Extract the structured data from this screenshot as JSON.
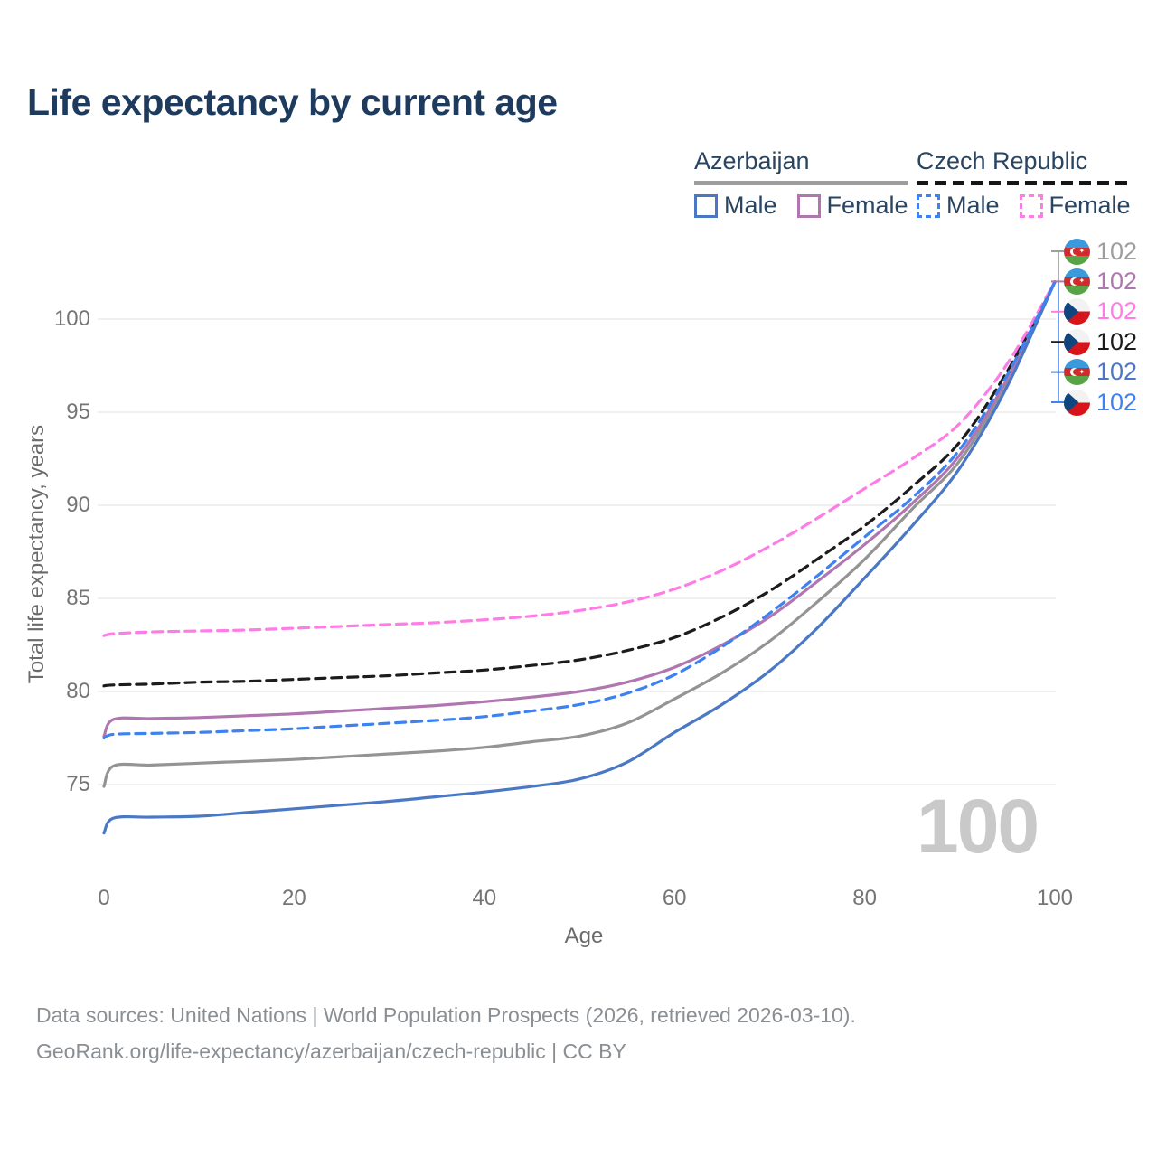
{
  "title": "Life expectancy by current age",
  "legend": {
    "groups": [
      {
        "label": "Azerbaijan",
        "underline": "solid",
        "items": [
          {
            "label": "Male"
          },
          {
            "label": "Female"
          }
        ]
      },
      {
        "label": "Czech Republic",
        "underline": "dashed",
        "items": [
          {
            "label": "Male"
          },
          {
            "label": "Female"
          }
        ]
      }
    ]
  },
  "watermark": "100",
  "end_labels": [
    {
      "flag": "az",
      "value": "102",
      "color": "#9e9e9e",
      "series": "Azerbaijan Both sexes"
    },
    {
      "flag": "az",
      "value": "102",
      "color": "#b076b0",
      "series": "Azerbaijan Female"
    },
    {
      "flag": "cz",
      "value": "102",
      "color": "#ff7ce6",
      "series": "Czech Republic Female"
    },
    {
      "flag": "cz",
      "value": "102",
      "color": "#1c1c1c",
      "series": "Czech Republic Both sexes"
    },
    {
      "flag": "az",
      "value": "102",
      "color": "#4a78c4",
      "series": "Azerbaijan Male"
    },
    {
      "flag": "cz",
      "value": "102",
      "color": "#3e82f1",
      "series": "Czech Republic Male"
    }
  ],
  "footer": {
    "line1": "Data sources: United Nations | World Population Prospects (2026, retrieved 2026-03-10).",
    "line2": "GeoRank.org/life-expectancy/azerbaijan/czech-republic | CC BY"
  },
  "chart_data": {
    "type": "line",
    "title": "Life expectancy by current age",
    "xlabel": "Age",
    "ylabel": "Total life expectancy, years",
    "x_ticks": [
      0,
      20,
      40,
      60,
      80,
      100
    ],
    "y_ticks": [
      75,
      80,
      85,
      90,
      95,
      100
    ],
    "xlim": [
      0,
      100
    ],
    "ylim": [
      71.5,
      103
    ],
    "grid": "horizontal-only",
    "legend_position": "top-right",
    "x": [
      0,
      1,
      5,
      10,
      15,
      20,
      25,
      30,
      35,
      40,
      45,
      50,
      55,
      60,
      65,
      70,
      75,
      80,
      85,
      90,
      95,
      100
    ],
    "series": [
      {
        "name": "Azerbaijan Both sexes",
        "country": "Azerbaijan",
        "sex": "Both",
        "color": "#949494",
        "dash": "solid",
        "values": [
          74.9,
          76.0,
          76.05,
          76.15,
          76.25,
          76.35,
          76.5,
          76.65,
          76.8,
          77.0,
          77.3,
          77.6,
          78.3,
          79.6,
          81.0,
          82.7,
          84.8,
          87.1,
          89.8,
          92.4,
          96.6,
          102
        ]
      },
      {
        "name": "Azerbaijan Female",
        "country": "Azerbaijan",
        "sex": "Female",
        "color": "#b076b0",
        "dash": "solid",
        "values": [
          77.6,
          78.5,
          78.55,
          78.6,
          78.7,
          78.8,
          78.95,
          79.1,
          79.25,
          79.45,
          79.7,
          80.0,
          80.5,
          81.3,
          82.5,
          84.0,
          85.9,
          87.9,
          90.1,
          92.7,
          96.8,
          102
        ]
      },
      {
        "name": "Czech Republic Both sexes",
        "country": "Czech Republic",
        "sex": "Both",
        "color": "#1c1c1c",
        "dash": "dashed",
        "values": [
          80.3,
          80.35,
          80.4,
          80.5,
          80.55,
          80.65,
          80.75,
          80.85,
          81.0,
          81.15,
          81.4,
          81.7,
          82.2,
          82.9,
          84.0,
          85.4,
          87.1,
          88.9,
          91.0,
          93.4,
          97.2,
          102
        ]
      },
      {
        "name": "Czech Republic Female",
        "country": "Czech Republic",
        "sex": "Female",
        "color": "#ff7ce6",
        "dash": "dashed",
        "values": [
          83.0,
          83.1,
          83.2,
          83.25,
          83.3,
          83.4,
          83.5,
          83.6,
          83.7,
          83.85,
          84.05,
          84.35,
          84.8,
          85.5,
          86.5,
          87.8,
          89.3,
          90.9,
          92.5,
          94.4,
          97.6,
          102
        ]
      },
      {
        "name": "Azerbaijan Male",
        "country": "Azerbaijan",
        "sex": "Male",
        "color": "#4a78c4",
        "dash": "solid",
        "values": [
          72.4,
          73.2,
          73.25,
          73.3,
          73.5,
          73.7,
          73.9,
          74.1,
          74.35,
          74.6,
          74.9,
          75.3,
          76.2,
          77.8,
          79.3,
          81.1,
          83.4,
          86.1,
          88.9,
          92.0,
          96.4,
          102
        ]
      },
      {
        "name": "Czech Republic Male",
        "country": "Czech Republic",
        "sex": "Male",
        "color": "#3e82f1",
        "dash": "dashed",
        "values": [
          77.5,
          77.7,
          77.75,
          77.8,
          77.9,
          78.0,
          78.15,
          78.3,
          78.45,
          78.65,
          78.95,
          79.3,
          79.9,
          80.9,
          82.4,
          84.2,
          86.2,
          88.3,
          90.4,
          93.0,
          97.0,
          102
        ]
      }
    ]
  }
}
